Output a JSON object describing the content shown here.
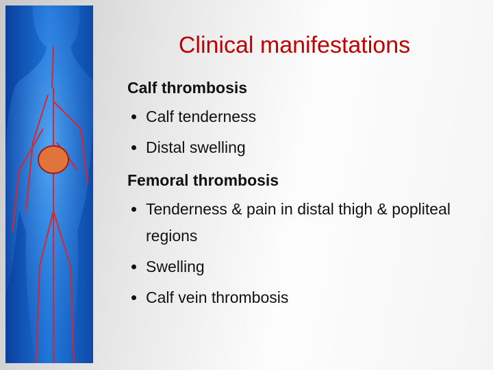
{
  "title": "Clinical manifestations",
  "sections": [
    {
      "heading": "Calf thrombosis",
      "bullets": [
        "Calf tenderness",
        "Distal swelling"
      ]
    },
    {
      "heading": "Femoral thrombosis",
      "bullets": [
        "Tenderness & pain in distal thigh & popliteal regions",
        "Swelling",
        "Calf vein thrombosis"
      ]
    }
  ]
}
